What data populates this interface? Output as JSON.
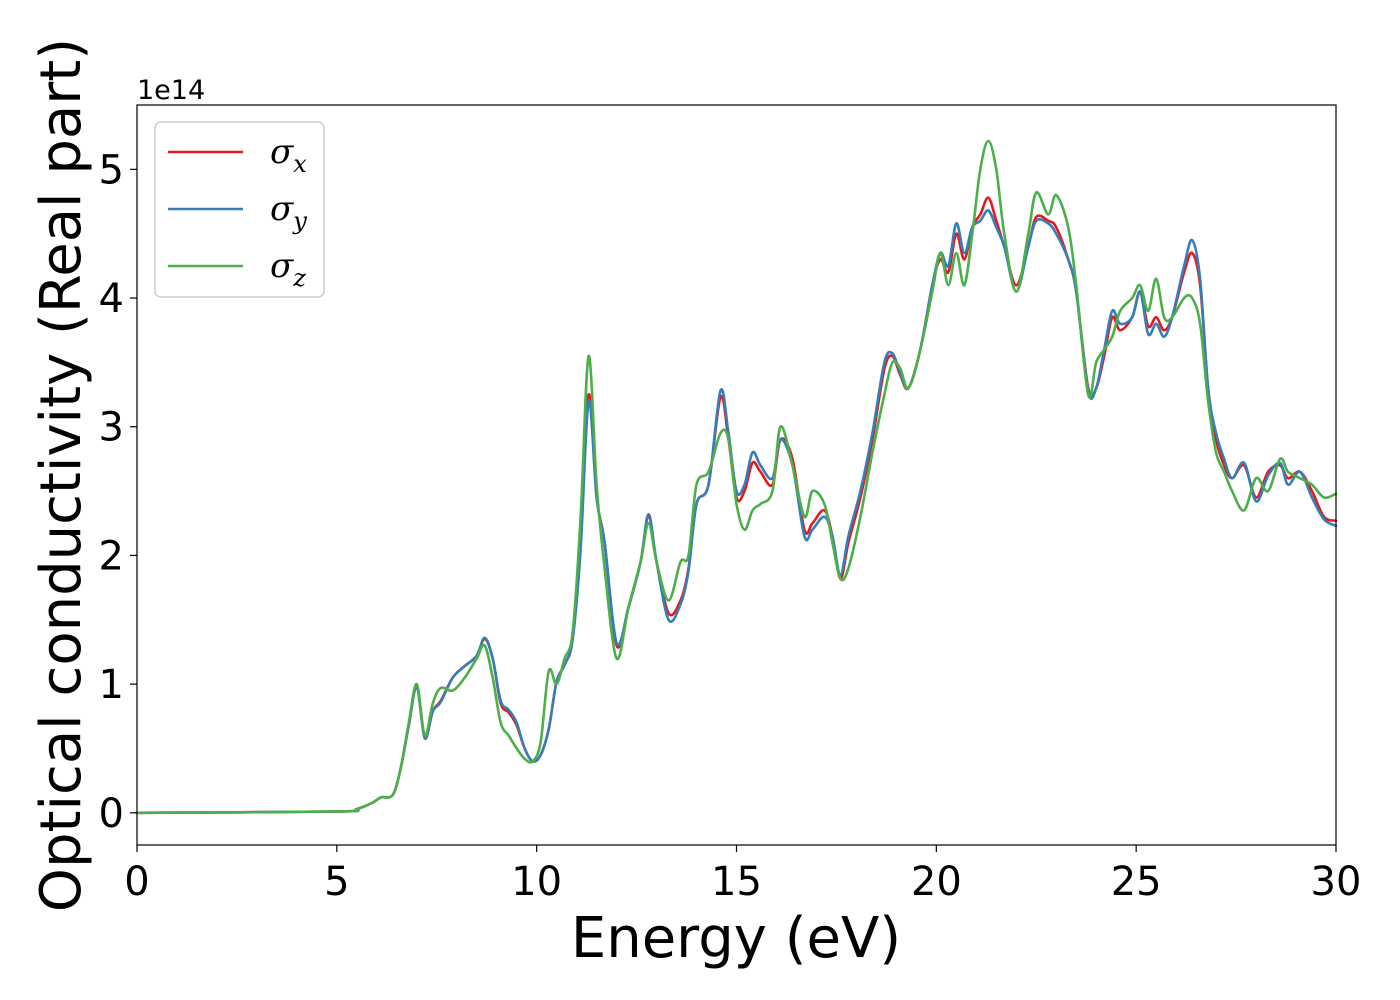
{
  "chart_data": {
    "type": "line",
    "xlabel": "Energy (eV)",
    "ylabel": "Optical conductivity (Real part)",
    "y_offset_label": "1e14",
    "y_scale_factor": 100000000000000.0,
    "xlim": [
      0,
      30
    ],
    "ylim": [
      -0.25,
      5.5
    ],
    "x_ticks": [
      0,
      5,
      10,
      15,
      20,
      25,
      30
    ],
    "x_tick_labels": [
      "0",
      "5",
      "10",
      "15",
      "20",
      "25",
      "30"
    ],
    "y_ticks": [
      0,
      1,
      2,
      3,
      4,
      5
    ],
    "y_tick_labels": [
      "0",
      "1",
      "2",
      "3",
      "4",
      "5"
    ],
    "grid": false,
    "legend_position": "top-left",
    "series": [
      {
        "name": "σx",
        "legend_symbol": "σ",
        "legend_subscript": "x",
        "color": "#e41a1c",
        "x": [
          0,
          5,
          5.5,
          5.9,
          6.1,
          6.4,
          6.6,
          6.8,
          7.0,
          7.2,
          7.4,
          7.6,
          7.9,
          8.2,
          8.5,
          8.7,
          8.9,
          9.1,
          9.3,
          9.5,
          9.7,
          9.9,
          10.1,
          10.3,
          10.5,
          10.7,
          10.9,
          11.1,
          11.3,
          11.5,
          11.7,
          12.0,
          12.3,
          12.6,
          12.8,
          13.0,
          13.3,
          13.6,
          13.8,
          14.0,
          14.3,
          14.6,
          14.8,
          15.0,
          15.2,
          15.4,
          15.6,
          15.9,
          16.1,
          16.4,
          16.7,
          16.9,
          17.2,
          17.4,
          17.6,
          17.8,
          18.1,
          18.4,
          18.7,
          18.9,
          19.1,
          19.3,
          19.6,
          19.9,
          20.1,
          20.3,
          20.5,
          20.7,
          20.9,
          21.1,
          21.3,
          21.5,
          21.7,
          22.0,
          22.3,
          22.5,
          22.8,
          23.0,
          23.3,
          23.5,
          23.8,
          24.0,
          24.2,
          24.4,
          24.6,
          24.9,
          25.1,
          25.3,
          25.5,
          25.7,
          25.9,
          26.2,
          26.4,
          26.6,
          26.8,
          27.0,
          27.2,
          27.4,
          27.7,
          28.0,
          28.3,
          28.6,
          28.8,
          29.1,
          29.4,
          29.7,
          30
        ],
        "y": [
          0,
          0.01,
          0.03,
          0.08,
          0.12,
          0.14,
          0.35,
          0.68,
          0.98,
          0.58,
          0.79,
          0.87,
          1.05,
          1.14,
          1.22,
          1.35,
          1.2,
          0.85,
          0.78,
          0.68,
          0.5,
          0.4,
          0.45,
          0.65,
          1.02,
          1.15,
          1.35,
          2.1,
          3.25,
          2.45,
          2.1,
          1.3,
          1.6,
          1.95,
          2.3,
          1.95,
          1.55,
          1.65,
          1.9,
          2.4,
          2.55,
          3.23,
          2.9,
          2.45,
          2.5,
          2.72,
          2.65,
          2.55,
          2.9,
          2.75,
          2.2,
          2.25,
          2.35,
          2.15,
          1.82,
          2.1,
          2.45,
          2.9,
          3.45,
          3.55,
          3.4,
          3.3,
          3.6,
          4.1,
          4.3,
          4.2,
          4.5,
          4.3,
          4.55,
          4.65,
          4.78,
          4.6,
          4.4,
          4.1,
          4.4,
          4.63,
          4.6,
          4.55,
          4.3,
          4.05,
          3.3,
          3.3,
          3.55,
          3.85,
          3.75,
          3.85,
          4.05,
          3.78,
          3.85,
          3.75,
          3.85,
          4.2,
          4.35,
          4.1,
          3.3,
          2.9,
          2.7,
          2.6,
          2.7,
          2.45,
          2.65,
          2.7,
          2.6,
          2.65,
          2.5,
          2.3,
          2.27
        ]
      },
      {
        "name": "σy",
        "legend_symbol": "σ",
        "legend_subscript": "y",
        "color": "#377eb8",
        "x": [
          0,
          5,
          5.5,
          5.9,
          6.1,
          6.4,
          6.6,
          6.8,
          7.0,
          7.2,
          7.4,
          7.6,
          7.9,
          8.2,
          8.5,
          8.7,
          8.9,
          9.1,
          9.3,
          9.5,
          9.7,
          9.9,
          10.1,
          10.3,
          10.5,
          10.7,
          10.9,
          11.1,
          11.3,
          11.5,
          11.7,
          12.0,
          12.3,
          12.6,
          12.8,
          13.0,
          13.3,
          13.6,
          13.8,
          14.0,
          14.3,
          14.6,
          14.8,
          15.0,
          15.2,
          15.4,
          15.6,
          15.9,
          16.1,
          16.4,
          16.7,
          16.9,
          17.2,
          17.4,
          17.6,
          17.8,
          18.1,
          18.4,
          18.7,
          18.9,
          19.1,
          19.3,
          19.6,
          19.9,
          20.1,
          20.3,
          20.5,
          20.7,
          20.9,
          21.1,
          21.3,
          21.5,
          21.7,
          22.0,
          22.3,
          22.5,
          22.8,
          23.0,
          23.3,
          23.5,
          23.8,
          24.0,
          24.2,
          24.4,
          24.6,
          24.9,
          25.1,
          25.3,
          25.5,
          25.7,
          25.9,
          26.2,
          26.4,
          26.6,
          26.8,
          27.0,
          27.2,
          27.4,
          27.7,
          28.0,
          28.3,
          28.6,
          28.8,
          29.1,
          29.4,
          29.7,
          30
        ],
        "y": [
          0,
          0.01,
          0.03,
          0.08,
          0.12,
          0.14,
          0.35,
          0.68,
          0.98,
          0.58,
          0.79,
          0.86,
          1.05,
          1.14,
          1.22,
          1.36,
          1.2,
          0.87,
          0.8,
          0.7,
          0.5,
          0.4,
          0.45,
          0.65,
          1.02,
          1.15,
          1.35,
          2.05,
          3.2,
          2.45,
          2.1,
          1.32,
          1.6,
          1.95,
          2.32,
          1.95,
          1.5,
          1.62,
          1.88,
          2.4,
          2.55,
          3.28,
          2.95,
          2.5,
          2.55,
          2.8,
          2.7,
          2.6,
          2.9,
          2.7,
          2.15,
          2.2,
          2.3,
          2.15,
          1.85,
          2.15,
          2.5,
          2.95,
          3.5,
          3.57,
          3.42,
          3.3,
          3.6,
          4.1,
          4.35,
          4.25,
          4.58,
          4.35,
          4.55,
          4.6,
          4.68,
          4.55,
          4.4,
          4.05,
          4.4,
          4.6,
          4.58,
          4.5,
          4.3,
          4.05,
          3.28,
          3.3,
          3.6,
          3.9,
          3.8,
          3.85,
          4.05,
          3.72,
          3.8,
          3.7,
          3.85,
          4.25,
          4.45,
          4.15,
          3.3,
          2.95,
          2.75,
          2.6,
          2.72,
          2.42,
          2.62,
          2.72,
          2.55,
          2.65,
          2.45,
          2.28,
          2.23
        ]
      },
      {
        "name": "σz",
        "legend_symbol": "σ",
        "legend_subscript": "z",
        "color": "#4daf4a",
        "x": [
          0,
          5,
          5.5,
          5.9,
          6.1,
          6.4,
          6.6,
          6.8,
          7.0,
          7.2,
          7.4,
          7.6,
          7.9,
          8.2,
          8.5,
          8.7,
          8.9,
          9.1,
          9.3,
          9.5,
          9.7,
          9.9,
          10.1,
          10.3,
          10.5,
          10.7,
          10.9,
          11.1,
          11.3,
          11.5,
          11.7,
          12.0,
          12.3,
          12.6,
          12.8,
          13.0,
          13.3,
          13.6,
          13.8,
          14.0,
          14.3,
          14.6,
          14.8,
          15.0,
          15.2,
          15.4,
          15.6,
          15.9,
          16.1,
          16.4,
          16.7,
          16.9,
          17.2,
          17.4,
          17.6,
          17.8,
          18.1,
          18.4,
          18.7,
          18.9,
          19.1,
          19.3,
          19.6,
          19.9,
          20.1,
          20.3,
          20.5,
          20.7,
          20.9,
          21.1,
          21.3,
          21.5,
          21.7,
          22.0,
          22.3,
          22.5,
          22.8,
          23.0,
          23.3,
          23.5,
          23.8,
          24.0,
          24.2,
          24.4,
          24.6,
          24.9,
          25.1,
          25.3,
          25.5,
          25.7,
          25.9,
          26.2,
          26.4,
          26.6,
          26.8,
          27.0,
          27.2,
          27.4,
          27.7,
          28.0,
          28.3,
          28.6,
          28.8,
          29.1,
          29.4,
          29.7,
          30
        ],
        "y": [
          0,
          0.01,
          0.03,
          0.08,
          0.12,
          0.14,
          0.35,
          0.7,
          1.0,
          0.6,
          0.85,
          0.97,
          0.95,
          1.05,
          1.2,
          1.3,
          1.05,
          0.7,
          0.6,
          0.5,
          0.42,
          0.4,
          0.55,
          1.1,
          1.0,
          1.2,
          1.4,
          2.3,
          3.55,
          2.55,
          1.9,
          1.2,
          1.6,
          1.95,
          2.25,
          1.95,
          1.65,
          1.95,
          2.0,
          2.55,
          2.65,
          2.95,
          2.9,
          2.4,
          2.2,
          2.35,
          2.4,
          2.5,
          3.0,
          2.7,
          2.3,
          2.5,
          2.4,
          2.1,
          1.82,
          1.9,
          2.3,
          2.8,
          3.25,
          3.5,
          3.45,
          3.3,
          3.6,
          4.05,
          4.35,
          4.1,
          4.35,
          4.1,
          4.5,
          5.0,
          5.22,
          5.0,
          4.5,
          4.05,
          4.5,
          4.82,
          4.65,
          4.8,
          4.55,
          4.1,
          3.25,
          3.5,
          3.6,
          3.7,
          3.9,
          4.0,
          4.1,
          3.9,
          4.15,
          3.85,
          3.85,
          4.0,
          4.0,
          3.8,
          3.2,
          2.8,
          2.65,
          2.5,
          2.35,
          2.6,
          2.5,
          2.75,
          2.65,
          2.6,
          2.55,
          2.45,
          2.48
        ]
      }
    ]
  }
}
